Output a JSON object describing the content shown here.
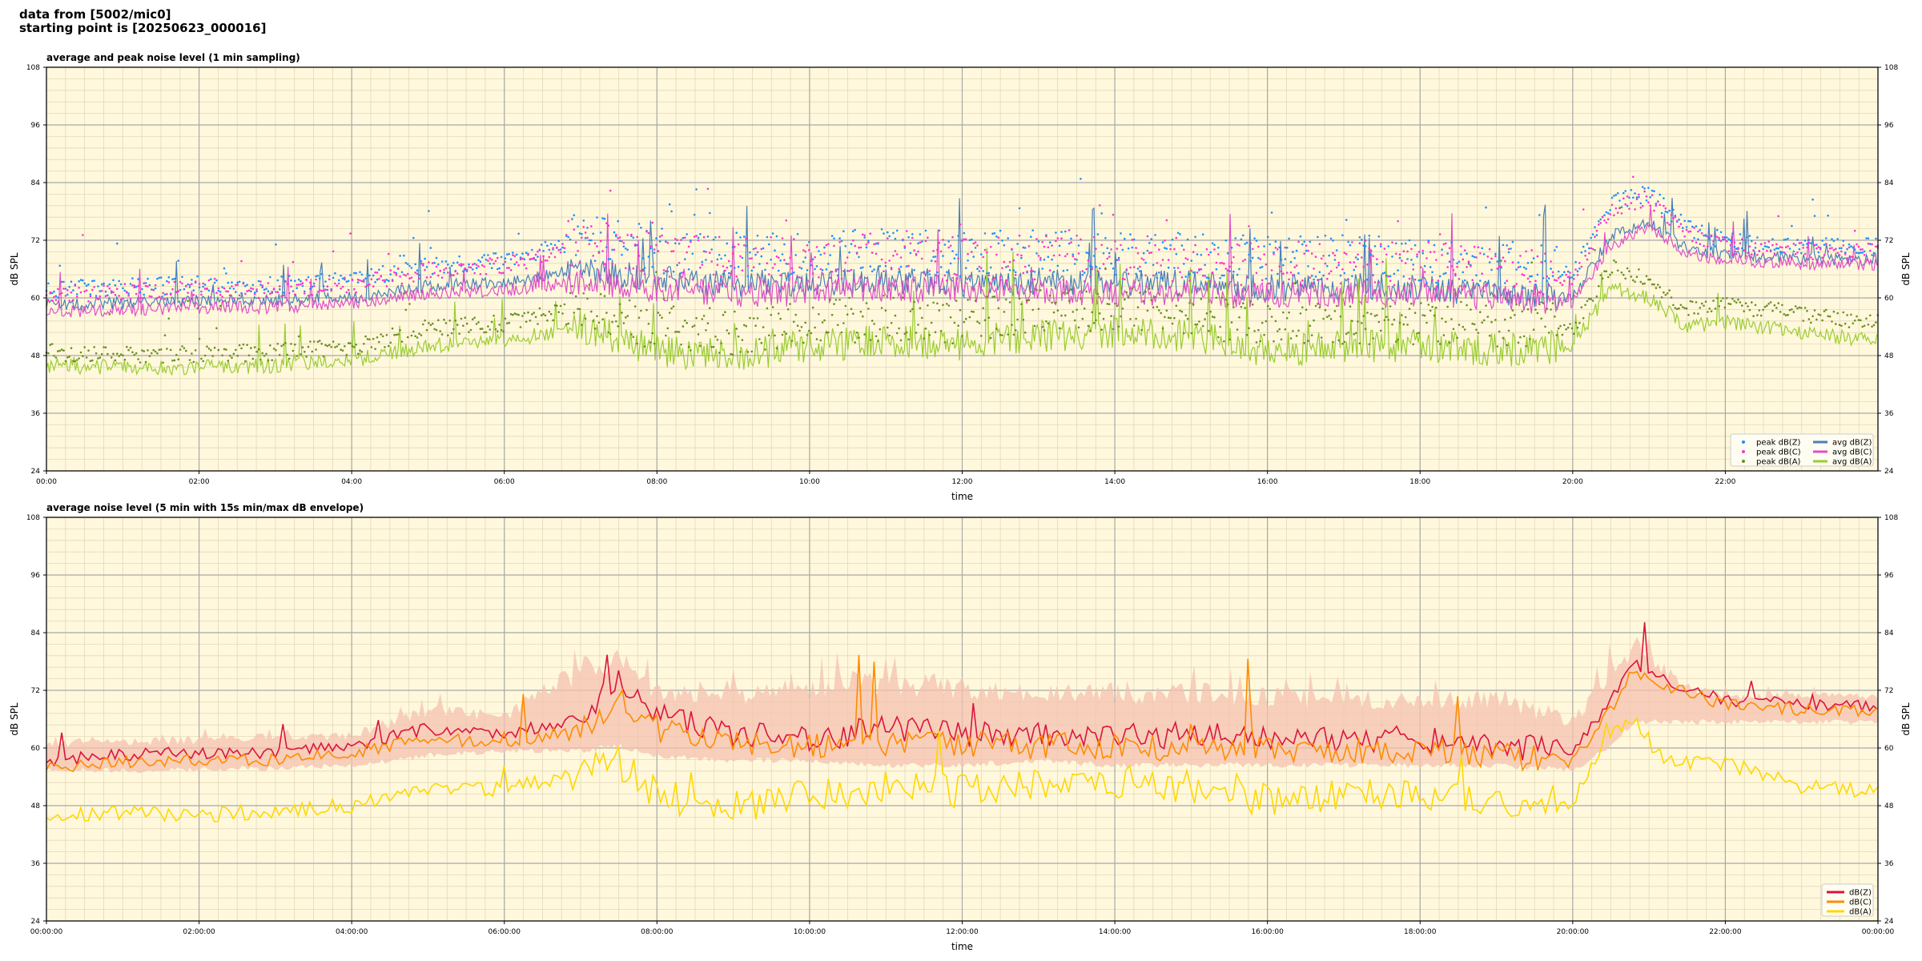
{
  "header": {
    "line1": "data from [5002/mic0]",
    "line2": "starting point is [20250623_000016]"
  },
  "chart_data": [
    {
      "type": "line",
      "title": "average and peak noise level (1 min sampling)",
      "xlabel": "time",
      "ylabel": "dB SPL",
      "ylim": [
        24,
        108
      ],
      "yticks": [
        "24",
        "36",
        "48",
        "60",
        "72",
        "84",
        "96",
        "108"
      ],
      "xlim_hours": [
        0,
        24
      ],
      "xticks": [
        "00:00",
        "02:00",
        "04:00",
        "06:00",
        "08:00",
        "10:00",
        "12:00",
        "14:00",
        "16:00",
        "18:00",
        "20:00",
        "22:00"
      ],
      "grid": true,
      "legend_position": "bottom-right",
      "legend": [
        "peak dB(Z)",
        "peak dB(C)",
        "peak dB(A)",
        "avg dB(Z)",
        "avg dB(C)",
        "avg dB(A)"
      ],
      "series": [
        {
          "name": "avg dB(Z)",
          "color": "#4a7fb5",
          "x": [
            0,
            1,
            2,
            3,
            4,
            5,
            6,
            7,
            8,
            9,
            10,
            11,
            12,
            13,
            14,
            15,
            16,
            17,
            18,
            19,
            20,
            20.5,
            21,
            21.5,
            22,
            23,
            24
          ],
          "values": [
            58.5,
            59,
            59.5,
            59.5,
            60,
            62.5,
            63,
            66,
            64,
            63,
            63,
            64,
            63,
            63.5,
            63,
            63,
            62,
            62.5,
            62,
            61,
            60,
            73,
            76,
            70,
            69,
            68,
            68
          ]
        },
        {
          "name": "avg dB(C)",
          "color": "#e04fc8",
          "x": [
            0,
            1,
            2,
            3,
            4,
            5,
            6,
            7,
            8,
            9,
            10,
            11,
            12,
            13,
            14,
            15,
            16,
            17,
            18,
            19,
            20,
            20.5,
            21,
            21.5,
            22,
            23,
            24
          ],
          "values": [
            57,
            57.5,
            58,
            58,
            59,
            61,
            61.5,
            63.5,
            62,
            61,
            61,
            62,
            61.5,
            61.5,
            61,
            61,
            60.5,
            61,
            60.5,
            60,
            59,
            71,
            75,
            69,
            68,
            67,
            67
          ]
        },
        {
          "name": "avg dB(A)",
          "color": "#9acd32",
          "x": [
            0,
            1,
            2,
            3,
            4,
            5,
            6,
            7,
            8,
            9,
            10,
            11,
            12,
            13,
            14,
            15,
            16,
            17,
            18,
            19,
            20,
            20.5,
            21,
            21.5,
            22,
            23,
            24
          ],
          "values": [
            46,
            45.5,
            45.5,
            46,
            47,
            50,
            51,
            54,
            49,
            48,
            50,
            51,
            50,
            52,
            53,
            52,
            49,
            50,
            50,
            49,
            50,
            62,
            60,
            54,
            55,
            53,
            51
          ]
        },
        {
          "name": "peak dB(Z)",
          "color": "#1e90ff",
          "x": [
            0,
            1,
            2,
            3,
            4,
            5,
            6,
            7,
            8,
            9,
            10,
            11,
            12,
            13,
            14,
            15,
            16,
            17,
            18,
            19,
            20,
            20.5,
            21,
            21.5,
            22,
            23,
            24
          ],
          "values": [
            61,
            61.5,
            62,
            62,
            63,
            66,
            67,
            71,
            68,
            67,
            67,
            68,
            67,
            67.5,
            67,
            67,
            66,
            66.5,
            66,
            65,
            64,
            79,
            81,
            74,
            71,
            70,
            70
          ]
        },
        {
          "name": "peak dB(C)",
          "color": "#ff33cc",
          "x": [
            0,
            1,
            2,
            3,
            4,
            5,
            6,
            7,
            8,
            9,
            10,
            11,
            12,
            13,
            14,
            15,
            16,
            17,
            18,
            19,
            20,
            20.5,
            21,
            21.5,
            22,
            23,
            24
          ],
          "values": [
            60,
            60.5,
            61,
            61,
            62,
            65,
            66,
            70,
            67,
            66,
            66,
            67,
            66,
            66.5,
            66,
            66,
            65,
            65.5,
            65,
            64,
            63,
            78,
            80,
            73,
            70,
            69,
            69
          ]
        },
        {
          "name": "peak dB(A)",
          "color": "#6b8e23",
          "x": [
            0,
            1,
            2,
            3,
            4,
            5,
            6,
            7,
            8,
            9,
            10,
            11,
            12,
            13,
            14,
            15,
            16,
            17,
            18,
            19,
            20,
            20.5,
            21,
            21.5,
            22,
            23,
            24
          ],
          "values": [
            48,
            47.5,
            47.5,
            48,
            49,
            53,
            54,
            57,
            52,
            51,
            53,
            54,
            53,
            55,
            56,
            55,
            52,
            53,
            53,
            52,
            53,
            66,
            63,
            57,
            58,
            56,
            54
          ]
        }
      ]
    },
    {
      "type": "line",
      "title": "average noise level (5 min with 15s min/max dB envelope)",
      "xlabel": "time",
      "ylabel": "dB SPL",
      "ylim": [
        24,
        108
      ],
      "yticks": [
        "24",
        "36",
        "48",
        "60",
        "72",
        "84",
        "96",
        "108"
      ],
      "xlim_hours": [
        0,
        24
      ],
      "xticks": [
        "00:00:00",
        "02:00:00",
        "04:00:00",
        "06:00:00",
        "08:00:00",
        "10:00:00",
        "12:00:00",
        "14:00:00",
        "16:00:00",
        "18:00:00",
        "20:00:00",
        "22:00:00",
        "00:00:00"
      ],
      "grid": true,
      "legend_position": "bottom-right",
      "legend": [
        "dB(Z)",
        "dB(C)",
        "dB(A)"
      ],
      "series": [
        {
          "name": "dB(Z)",
          "color": "#dc143c",
          "x": [
            0,
            1,
            2,
            3,
            4,
            5,
            6,
            7,
            7.5,
            8,
            9,
            10,
            11,
            12,
            13,
            14,
            15,
            16,
            17,
            18,
            19,
            20,
            20.5,
            20.8,
            21.2,
            22,
            23,
            24
          ],
          "values": [
            57.5,
            58.5,
            59,
            59,
            60.5,
            64,
            63,
            66,
            74,
            67,
            63,
            62,
            64,
            63,
            63,
            62.5,
            62.5,
            62,
            62,
            62,
            60.5,
            59,
            70,
            78,
            74,
            70,
            69,
            69
          ]
        },
        {
          "name": "dB(C)",
          "color": "#ff8c00",
          "x": [
            0,
            1,
            2,
            3,
            4,
            5,
            6,
            7,
            7.5,
            8,
            9,
            10,
            11,
            12,
            13,
            14,
            15,
            16,
            17,
            18,
            19,
            20,
            20.5,
            20.8,
            21.2,
            22,
            23,
            24
          ],
          "values": [
            56,
            57,
            57.5,
            57.5,
            59,
            62,
            61,
            64,
            70,
            64,
            61,
            60,
            61,
            60.5,
            60.5,
            60,
            60,
            59.5,
            59.5,
            59.5,
            58.5,
            57,
            68,
            76,
            73,
            69,
            68,
            67.5
          ]
        },
        {
          "name": "dB(A)",
          "color": "#ffd700",
          "x": [
            0,
            1,
            2,
            3,
            4,
            5,
            6,
            7,
            7.5,
            8,
            9,
            10,
            11,
            12,
            13,
            14,
            15,
            16,
            17,
            18,
            19,
            20,
            20.5,
            20.8,
            21.2,
            22,
            23,
            24
          ],
          "values": [
            46,
            46.5,
            46,
            47,
            48,
            51,
            51.5,
            55,
            57,
            50,
            48,
            50,
            52,
            51,
            52,
            53,
            52,
            49,
            50,
            50,
            48,
            49,
            64,
            66,
            57,
            57,
            52,
            51
          ]
        }
      ],
      "envelope": {
        "color": "#f4c1b0",
        "x": [
          0,
          2,
          4,
          5,
          6,
          7,
          7.5,
          8,
          9,
          10,
          11,
          12,
          13,
          14,
          15,
          16,
          17,
          18,
          19,
          20,
          20.5,
          20.8,
          21.5,
          22,
          23,
          24
        ],
        "max": [
          62,
          63,
          64,
          70,
          68,
          80,
          82,
          74,
          74,
          76,
          78,
          76,
          74,
          75,
          75,
          74,
          73,
          73,
          73,
          68,
          80,
          85,
          74,
          72,
          72,
          72
        ],
        "min": [
          56,
          56,
          57,
          59,
          60,
          60,
          61,
          59,
          58,
          58,
          57,
          57,
          58,
          57,
          57,
          57,
          57,
          57,
          57,
          56,
          61,
          66,
          66,
          66,
          66,
          66
        ]
      }
    }
  ]
}
